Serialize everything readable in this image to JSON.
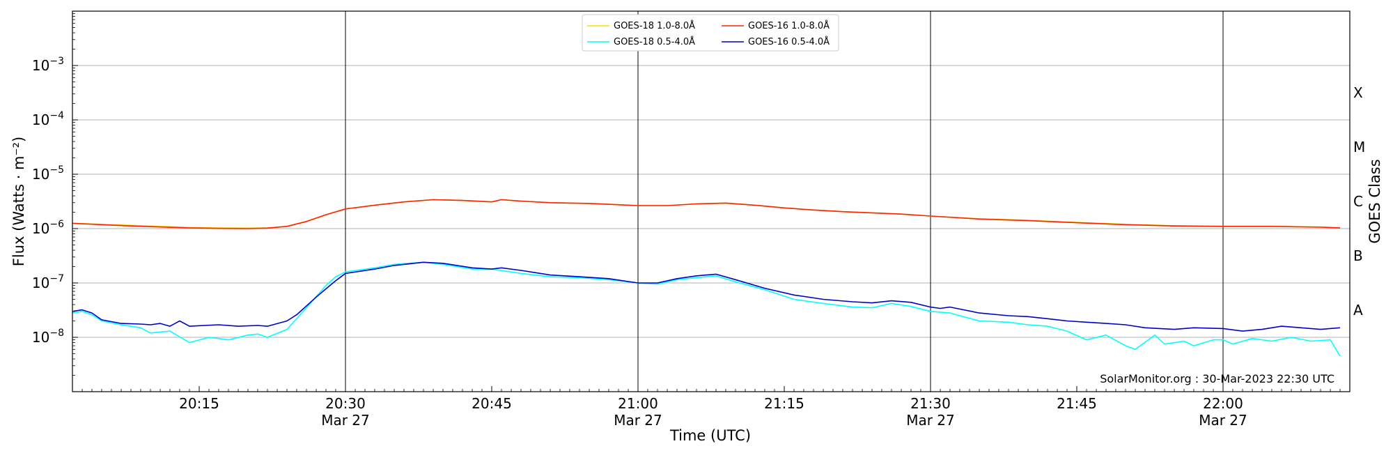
{
  "chart_data": {
    "type": "line",
    "xlabel": "Time (UTC)",
    "ylabel": "Flux (Watts · m⁻²)",
    "ylabel_right": "GOES Class",
    "yscale": "log",
    "ylim": [
      1e-09,
      0.01
    ],
    "xlim": [
      "20:02",
      "22:13"
    ],
    "grid": "horizontal",
    "legend_position": "top-center",
    "y_ticks": [
      {
        "value": 1e-08,
        "base": "10",
        "exp": "−8"
      },
      {
        "value": 1e-07,
        "base": "10",
        "exp": "−7"
      },
      {
        "value": 1e-06,
        "base": "10",
        "exp": "−6"
      },
      {
        "value": 1e-05,
        "base": "10",
        "exp": "−5"
      },
      {
        "value": 0.0001,
        "base": "10",
        "exp": "−4"
      },
      {
        "value": 0.001,
        "base": "10",
        "exp": "−3"
      }
    ],
    "x_ticks": [
      {
        "time": "20:15",
        "label": "20:15",
        "date": ""
      },
      {
        "time": "20:30",
        "label": "20:30",
        "date": "Mar 27"
      },
      {
        "time": "20:45",
        "label": "20:45",
        "date": ""
      },
      {
        "time": "21:00",
        "label": "21:00",
        "date": "Mar 27"
      },
      {
        "time": "21:15",
        "label": "21:15",
        "date": ""
      },
      {
        "time": "21:30",
        "label": "21:30",
        "date": "Mar 27"
      },
      {
        "time": "21:45",
        "label": "21:45",
        "date": ""
      },
      {
        "time": "22:00",
        "label": "22:00",
        "date": "Mar 27"
      }
    ],
    "vertical_lines": [
      "20:30",
      "21:00",
      "21:30",
      "22:00"
    ],
    "goes_classes": [
      {
        "label": "A",
        "value": 3.16e-08
      },
      {
        "label": "B",
        "value": 3.16e-07
      },
      {
        "label": "C",
        "value": 3.16e-06
      },
      {
        "label": "M",
        "value": 3.16e-05
      },
      {
        "label": "X",
        "value": 0.000316
      }
    ],
    "credit": "SolarMonitor.org : 30-Mar-2023 22:30 UTC",
    "series": [
      {
        "name": "GOES-18 1.0-8.0Å",
        "color": "#ffd700",
        "points": [
          [
            "20:02",
            1.25e-06
          ],
          [
            "20:05",
            1.2e-06
          ],
          [
            "20:08",
            1.15e-06
          ],
          [
            "20:11",
            1.1e-06
          ],
          [
            "20:14",
            1.05e-06
          ],
          [
            "20:17",
            1.03e-06
          ],
          [
            "20:20",
            1.02e-06
          ],
          [
            "20:22",
            1.03e-06
          ],
          [
            "20:24",
            1.1e-06
          ],
          [
            "20:26",
            1.35e-06
          ],
          [
            "20:28",
            1.8e-06
          ],
          [
            "20:30",
            2.3e-06
          ],
          [
            "20:33",
            2.7e-06
          ],
          [
            "20:36",
            3.1e-06
          ],
          [
            "20:39",
            3.4e-06
          ],
          [
            "20:42",
            3.3e-06
          ],
          [
            "20:45",
            3.1e-06
          ],
          [
            "20:46",
            3.4e-06
          ],
          [
            "20:48",
            3.2e-06
          ],
          [
            "20:51",
            3e-06
          ],
          [
            "20:55",
            2.9e-06
          ],
          [
            "21:00",
            2.65e-06
          ],
          [
            "21:03",
            2.65e-06
          ],
          [
            "21:06",
            2.85e-06
          ],
          [
            "21:09",
            2.95e-06
          ],
          [
            "21:12",
            2.7e-06
          ],
          [
            "21:15",
            2.4e-06
          ],
          [
            "21:18",
            2.2e-06
          ],
          [
            "21:21",
            2.05e-06
          ],
          [
            "21:24",
            1.95e-06
          ],
          [
            "21:27",
            1.85e-06
          ],
          [
            "21:30",
            1.7e-06
          ],
          [
            "21:35",
            1.52e-06
          ],
          [
            "21:40",
            1.42e-06
          ],
          [
            "21:45",
            1.3e-06
          ],
          [
            "21:50",
            1.2e-06
          ],
          [
            "21:55",
            1.13e-06
          ],
          [
            "22:00",
            1.1e-06
          ],
          [
            "22:05",
            1.1e-06
          ],
          [
            "22:10",
            1.07e-06
          ],
          [
            "22:12",
            1.04e-06
          ]
        ]
      },
      {
        "name": "GOES-18 0.5-4.0Å",
        "color": "#00ffff",
        "points": [
          [
            "20:02",
            2.8e-08
          ],
          [
            "20:03",
            3e-08
          ],
          [
            "20:04",
            2.6e-08
          ],
          [
            "20:05",
            2e-08
          ],
          [
            "20:07",
            1.7e-08
          ],
          [
            "20:09",
            1.5e-08
          ],
          [
            "20:10",
            1.2e-08
          ],
          [
            "20:12",
            1.3e-08
          ],
          [
            "20:14",
            8e-09
          ],
          [
            "20:16",
            1e-08
          ],
          [
            "20:18",
            9e-09
          ],
          [
            "20:20",
            1.1e-08
          ],
          [
            "20:21",
            1.15e-08
          ],
          [
            "20:22",
            1e-08
          ],
          [
            "20:24",
            1.4e-08
          ],
          [
            "20:26",
            3.5e-08
          ],
          [
            "20:28",
            9e-08
          ],
          [
            "20:29",
            1.3e-07
          ],
          [
            "20:30",
            1.6e-07
          ],
          [
            "20:33",
            1.9e-07
          ],
          [
            "20:35",
            2.2e-07
          ],
          [
            "20:38",
            2.4e-07
          ],
          [
            "20:40",
            2.2e-07
          ],
          [
            "20:43",
            1.8e-07
          ],
          [
            "20:45",
            1.8e-07
          ],
          [
            "20:48",
            1.5e-07
          ],
          [
            "20:51",
            1.3e-07
          ],
          [
            "20:54",
            1.25e-07
          ],
          [
            "20:57",
            1.15e-07
          ],
          [
            "21:00",
            1e-07
          ],
          [
            "21:02",
            9.5e-08
          ],
          [
            "21:04",
            1.15e-07
          ],
          [
            "21:06",
            1.25e-07
          ],
          [
            "21:08",
            1.35e-07
          ],
          [
            "21:10",
            1.05e-07
          ],
          [
            "21:13",
            7.5e-08
          ],
          [
            "21:16",
            5e-08
          ],
          [
            "21:19",
            4.2e-08
          ],
          [
            "21:22",
            3.6e-08
          ],
          [
            "21:24",
            3.5e-08
          ],
          [
            "21:26",
            4.2e-08
          ],
          [
            "21:28",
            3.7e-08
          ],
          [
            "21:30",
            3e-08
          ],
          [
            "21:32",
            2.8e-08
          ],
          [
            "21:35",
            2e-08
          ],
          [
            "21:38",
            1.9e-08
          ],
          [
            "21:40",
            1.7e-08
          ],
          [
            "21:42",
            1.6e-08
          ],
          [
            "21:44",
            1.3e-08
          ],
          [
            "21:46",
            9e-09
          ],
          [
            "21:48",
            1.1e-08
          ],
          [
            "21:50",
            7e-09
          ],
          [
            "21:51",
            6e-09
          ],
          [
            "21:53",
            1.1e-08
          ],
          [
            "21:54",
            7.5e-09
          ],
          [
            "21:56",
            8.5e-09
          ],
          [
            "21:57",
            7e-09
          ],
          [
            "21:59",
            9e-09
          ],
          [
            "22:00",
            9e-09
          ],
          [
            "22:01",
            7.5e-09
          ],
          [
            "22:03",
            9.5e-09
          ],
          [
            "22:05",
            8.5e-09
          ],
          [
            "22:07",
            1e-08
          ],
          [
            "22:09",
            8.5e-09
          ],
          [
            "22:11",
            9e-09
          ],
          [
            "22:12",
            4.5e-09
          ]
        ]
      },
      {
        "name": "GOES-16 1.0-8.0Å",
        "color": "#ff2200",
        "points": [
          [
            "20:02",
            1.25e-06
          ],
          [
            "20:05",
            1.18e-06
          ],
          [
            "20:08",
            1.12e-06
          ],
          [
            "20:11",
            1.07e-06
          ],
          [
            "20:14",
            1.03e-06
          ],
          [
            "20:17",
            1.01e-06
          ],
          [
            "20:20",
            1e-06
          ],
          [
            "20:22",
            1.02e-06
          ],
          [
            "20:24",
            1.1e-06
          ],
          [
            "20:26",
            1.35e-06
          ],
          [
            "20:28",
            1.8e-06
          ],
          [
            "20:30",
            2.3e-06
          ],
          [
            "20:33",
            2.7e-06
          ],
          [
            "20:36",
            3.1e-06
          ],
          [
            "20:39",
            3.4e-06
          ],
          [
            "20:42",
            3.3e-06
          ],
          [
            "20:45",
            3.1e-06
          ],
          [
            "20:46",
            3.4e-06
          ],
          [
            "20:48",
            3.2e-06
          ],
          [
            "20:51",
            3e-06
          ],
          [
            "20:55",
            2.9e-06
          ],
          [
            "21:00",
            2.65e-06
          ],
          [
            "21:03",
            2.65e-06
          ],
          [
            "21:06",
            2.85e-06
          ],
          [
            "21:09",
            2.95e-06
          ],
          [
            "21:12",
            2.7e-06
          ],
          [
            "21:15",
            2.4e-06
          ],
          [
            "21:18",
            2.2e-06
          ],
          [
            "21:21",
            2.05e-06
          ],
          [
            "21:24",
            1.95e-06
          ],
          [
            "21:27",
            1.85e-06
          ],
          [
            "21:30",
            1.7e-06
          ],
          [
            "21:35",
            1.5e-06
          ],
          [
            "21:40",
            1.4e-06
          ],
          [
            "21:45",
            1.28e-06
          ],
          [
            "21:50",
            1.18e-06
          ],
          [
            "21:55",
            1.12e-06
          ],
          [
            "22:00",
            1.1e-06
          ],
          [
            "22:05",
            1.1e-06
          ],
          [
            "22:10",
            1.06e-06
          ],
          [
            "22:12",
            1.03e-06
          ]
        ]
      },
      {
        "name": "GOES-16 0.5-4.0Å",
        "color": "#0000cc",
        "points": [
          [
            "20:02",
            3e-08
          ],
          [
            "20:03",
            3.2e-08
          ],
          [
            "20:04",
            2.8e-08
          ],
          [
            "20:05",
            2.1e-08
          ],
          [
            "20:07",
            1.8e-08
          ],
          [
            "20:09",
            1.75e-08
          ],
          [
            "20:10",
            1.7e-08
          ],
          [
            "20:11",
            1.8e-08
          ],
          [
            "20:12",
            1.6e-08
          ],
          [
            "20:13",
            2e-08
          ],
          [
            "20:14",
            1.6e-08
          ],
          [
            "20:17",
            1.7e-08
          ],
          [
            "20:19",
            1.6e-08
          ],
          [
            "20:21",
            1.65e-08
          ],
          [
            "20:22",
            1.6e-08
          ],
          [
            "20:24",
            2e-08
          ],
          [
            "20:25",
            2.6e-08
          ],
          [
            "20:27",
            5.5e-08
          ],
          [
            "20:29",
            1.1e-07
          ],
          [
            "20:30",
            1.5e-07
          ],
          [
            "20:33",
            1.8e-07
          ],
          [
            "20:35",
            2.1e-07
          ],
          [
            "20:38",
            2.4e-07
          ],
          [
            "20:40",
            2.3e-07
          ],
          [
            "20:43",
            1.9e-07
          ],
          [
            "20:45",
            1.8e-07
          ],
          [
            "20:46",
            1.9e-07
          ],
          [
            "20:48",
            1.7e-07
          ],
          [
            "20:51",
            1.4e-07
          ],
          [
            "20:54",
            1.3e-07
          ],
          [
            "20:57",
            1.2e-07
          ],
          [
            "21:00",
            1e-07
          ],
          [
            "21:02",
            1e-07
          ],
          [
            "21:04",
            1.2e-07
          ],
          [
            "21:06",
            1.35e-07
          ],
          [
            "21:08",
            1.45e-07
          ],
          [
            "21:10",
            1.15e-07
          ],
          [
            "21:13",
            8e-08
          ],
          [
            "21:16",
            6e-08
          ],
          [
            "21:19",
            5e-08
          ],
          [
            "21:22",
            4.5e-08
          ],
          [
            "21:24",
            4.3e-08
          ],
          [
            "21:26",
            4.7e-08
          ],
          [
            "21:28",
            4.4e-08
          ],
          [
            "21:30",
            3.6e-08
          ],
          [
            "21:31",
            3.4e-08
          ],
          [
            "21:32",
            3.6e-08
          ],
          [
            "21:35",
            2.8e-08
          ],
          [
            "21:38",
            2.5e-08
          ],
          [
            "21:40",
            2.4e-08
          ],
          [
            "21:42",
            2.2e-08
          ],
          [
            "21:44",
            2e-08
          ],
          [
            "21:46",
            1.9e-08
          ],
          [
            "21:48",
            1.8e-08
          ],
          [
            "21:50",
            1.7e-08
          ],
          [
            "21:52",
            1.5e-08
          ],
          [
            "21:55",
            1.4e-08
          ],
          [
            "21:57",
            1.5e-08
          ],
          [
            "22:00",
            1.45e-08
          ],
          [
            "22:02",
            1.3e-08
          ],
          [
            "22:04",
            1.4e-08
          ],
          [
            "22:06",
            1.6e-08
          ],
          [
            "22:08",
            1.5e-08
          ],
          [
            "22:10",
            1.4e-08
          ],
          [
            "22:12",
            1.5e-08
          ]
        ]
      }
    ]
  }
}
